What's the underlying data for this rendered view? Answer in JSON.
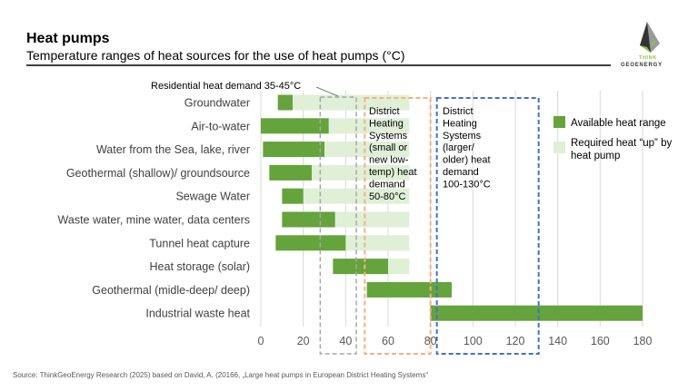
{
  "header": {
    "title": "Heat pumps",
    "subtitle": "Temperature ranges of heat sources for the use of heat pumps (°C)",
    "logo_text": [
      "THINK",
      "GEOENERGY"
    ]
  },
  "source": "Source: ThinkGeoEnergy Research (2025) based on David, A. (20166, „Large heat pumps in European District Heating Systems“",
  "chart_data": {
    "type": "bar",
    "orientation": "horizontal-range",
    "title": "Temperature ranges of heat sources for the use of heat pumps (°C)",
    "categories": [
      "Groundwater",
      "Air-to-water",
      "Water from the Sea, lake, river",
      "Geothermal (shallow)/ groundsource",
      "Sewage Water",
      "Waste water, mine water, data centers",
      "Tunnel heat capture",
      "Heat storage (solar)",
      "Geothermal (midle-deep/ deep)",
      "Industrial waste heat"
    ],
    "series": [
      {
        "name": "Available heat range",
        "color": "#65a33c",
        "ranges": [
          [
            8,
            15
          ],
          [
            0,
            32
          ],
          [
            1,
            30
          ],
          [
            4,
            24
          ],
          [
            10,
            20
          ],
          [
            10,
            35
          ],
          [
            7,
            40
          ],
          [
            34,
            60
          ],
          [
            50,
            90
          ],
          [
            80,
            180
          ]
        ]
      },
      {
        "name": "Required heat “up” by heat pump",
        "color": "#dff0d6",
        "ranges": [
          [
            15,
            70
          ],
          [
            32,
            70
          ],
          [
            30,
            70
          ],
          [
            24,
            70
          ],
          [
            20,
            70
          ],
          [
            35,
            70
          ],
          [
            40,
            70
          ],
          [
            60,
            70
          ],
          null,
          null
        ]
      }
    ],
    "xlim": [
      0,
      180
    ],
    "xticks": [
      0,
      20,
      40,
      60,
      80,
      100,
      120,
      140,
      160,
      180
    ],
    "grid": "vertical",
    "legend": "right",
    "annotations": [
      {
        "label": "Residential heat demand 35-45°C",
        "range": [
          28,
          45
        ],
        "color": "#a6a6a6"
      },
      {
        "label": [
          "District",
          "Heating",
          "Systems",
          "(small or",
          "new low-",
          "temp) heat",
          "demand",
          "50-80°C"
        ],
        "range": [
          49,
          80
        ],
        "color": "#f4b183"
      },
      {
        "label": [
          "District",
          "Heating",
          "Systems",
          "(larger/",
          "older) heat",
          "demand",
          "100-130°C"
        ],
        "range": [
          83,
          131
        ],
        "color": "#4472c4"
      }
    ]
  }
}
